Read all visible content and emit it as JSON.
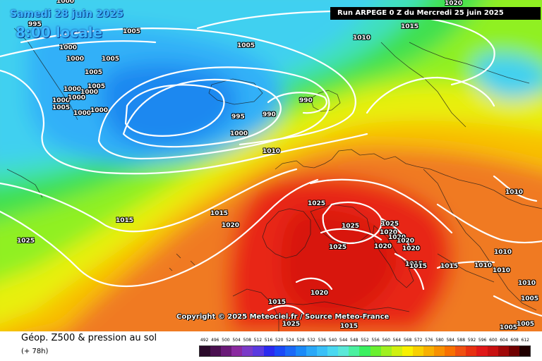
{
  "header": {
    "date": "Samedi 28 juin 2025",
    "time": "8:00 locale",
    "run": "Run ARPEGE 0 Z du Mercredi 25 juin 2025"
  },
  "map": {
    "copyright": "Copyright © 2025 Meteociel.fr / Source Meteo-France",
    "isobar_labels": [
      {
        "text": "1000"
      },
      {
        "text": "995"
      },
      {
        "text": "1005"
      },
      {
        "text": "1000"
      },
      {
        "text": "1000"
      },
      {
        "text": "1005"
      },
      {
        "text": "1005"
      },
      {
        "text": "1005"
      },
      {
        "text": "1000"
      },
      {
        "text": "1000"
      },
      {
        "text": "1005"
      },
      {
        "text": "1000"
      },
      {
        "text": "1000"
      },
      {
        "text": "1000"
      },
      {
        "text": "1000"
      },
      {
        "text": "1005"
      },
      {
        "text": "1010"
      },
      {
        "text": "1015"
      },
      {
        "text": "1020"
      },
      {
        "text": "995"
      },
      {
        "text": "990"
      },
      {
        "text": "990"
      },
      {
        "text": "1000"
      },
      {
        "text": "1010"
      },
      {
        "text": "1015"
      },
      {
        "text": "1020"
      },
      {
        "text": "1015"
      },
      {
        "text": "1025"
      },
      {
        "text": "1025"
      },
      {
        "text": "1025"
      },
      {
        "text": "1025"
      },
      {
        "text": "1025"
      },
      {
        "text": "1020"
      },
      {
        "text": "1020"
      },
      {
        "text": "1020"
      },
      {
        "text": "1020"
      },
      {
        "text": "1020"
      },
      {
        "text": "1015"
      },
      {
        "text": "1015"
      },
      {
        "text": "1015"
      },
      {
        "text": "1010"
      },
      {
        "text": "1010"
      },
      {
        "text": "1010"
      },
      {
        "text": "1010"
      },
      {
        "text": "1020"
      },
      {
        "text": "1015"
      },
      {
        "text": "1025"
      },
      {
        "text": "1015"
      },
      {
        "text": "1005"
      },
      {
        "text": "1005"
      },
      {
        "text": "1005"
      },
      {
        "text": "1010"
      }
    ]
  },
  "footer": {
    "title": "Géop. Z500 & pression au sol",
    "subtitle": "(+ 78h)"
  },
  "legend": {
    "labels": [
      "492",
      "496",
      "500",
      "504",
      "508",
      "512",
      "516",
      "520",
      "524",
      "528",
      "532",
      "536",
      "540",
      "544",
      "548",
      "552",
      "556",
      "560",
      "564",
      "568",
      "572",
      "576",
      "580",
      "584",
      "588",
      "592",
      "596",
      "600",
      "604",
      "608",
      "612"
    ],
    "colors": [
      "#2a0a2a",
      "#4a1050",
      "#6a1a78",
      "#8a2aa0",
      "#7a3ac8",
      "#5a3ae0",
      "#2a2af0",
      "#1a4af8",
      "#1a6af8",
      "#1a8af8",
      "#2aa8f8",
      "#3ac0f8",
      "#4ad8f0",
      "#5ae8d8",
      "#4af0a0",
      "#3af060",
      "#6af030",
      "#a0f020",
      "#d0f010",
      "#f8f000",
      "#f8d000",
      "#f8b000",
      "#f89000",
      "#f87000",
      "#f05010",
      "#e83010",
      "#e01818",
      "#c81010",
      "#a00808",
      "#700000",
      "#200000"
    ]
  }
}
